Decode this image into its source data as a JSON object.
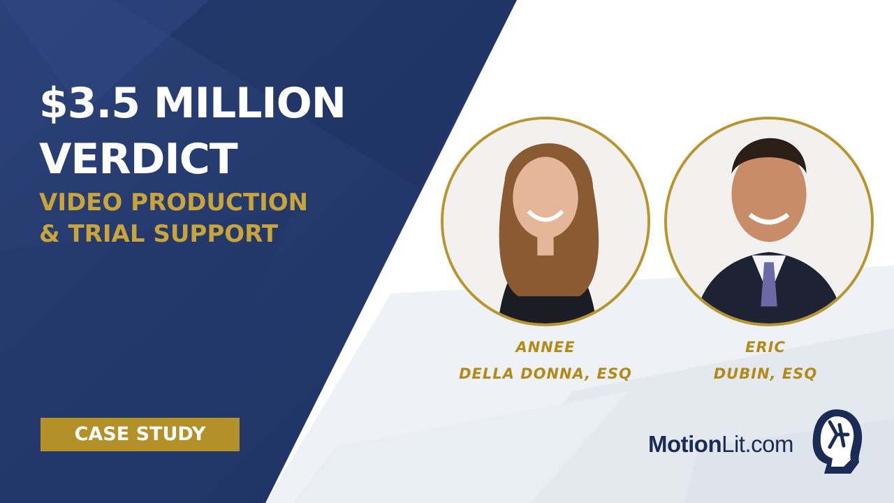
{
  "headline": [
    "$3.5 MILLION",
    "VERDICT"
  ],
  "subheadline": [
    "VIDEO PRODUCTION",
    "& TRIAL SUPPORT"
  ],
  "badge": "CASE STUDY",
  "people": [
    {
      "first": "ANNEE",
      "last": "DELLA DONNA, ESQ"
    },
    {
      "first": "ERIC",
      "last": "DUBIN, ESQ"
    }
  ],
  "brand": {
    "bold": "Motion",
    "rest": "Lit.com",
    "logo_icon": "head-profile-logo-icon"
  },
  "colors": {
    "navy": "#243a6e",
    "gold": "#b8962e",
    "white": "#ffffff"
  }
}
